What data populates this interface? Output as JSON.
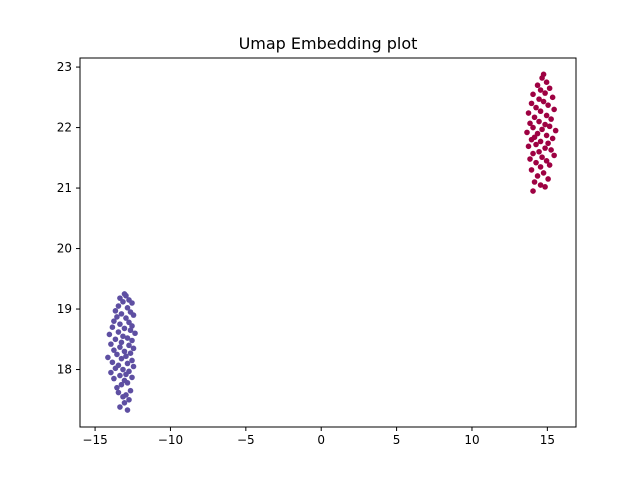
{
  "chart_data": {
    "type": "scatter",
    "title": "Umap Embedding plot",
    "xlabel": "",
    "ylabel": "",
    "xlim": [
      -16.0,
      16.9
    ],
    "ylim": [
      17.05,
      23.15
    ],
    "xticks": [
      -15,
      -10,
      -5,
      0,
      5,
      10,
      15
    ],
    "xtick_labels": [
      "−15",
      "−10",
      "−5",
      "0",
      "5",
      "10",
      "15"
    ],
    "yticks": [
      18,
      19,
      20,
      21,
      22,
      23
    ],
    "ytick_labels": [
      "18",
      "19",
      "20",
      "21",
      "22",
      "23"
    ],
    "grid": false,
    "legend": "none",
    "series": [
      {
        "color": "#5e4fa2",
        "points": [
          [
            -13.05,
            19.25
          ],
          [
            -12.95,
            19.22
          ],
          [
            -13.35,
            19.18
          ],
          [
            -12.75,
            19.15
          ],
          [
            -13.15,
            19.12
          ],
          [
            -12.55,
            19.1
          ],
          [
            -13.45,
            19.05
          ],
          [
            -12.85,
            19.02
          ],
          [
            -13.65,
            18.97
          ],
          [
            -12.65,
            18.95
          ],
          [
            -13.25,
            18.92
          ],
          [
            -12.45,
            18.9
          ],
          [
            -13.55,
            18.87
          ],
          [
            -12.95,
            18.85
          ],
          [
            -13.75,
            18.8
          ],
          [
            -12.75,
            18.78
          ],
          [
            -13.35,
            18.75
          ],
          [
            -12.55,
            18.72
          ],
          [
            -13.85,
            18.7
          ],
          [
            -13.05,
            18.68
          ],
          [
            -12.65,
            18.65
          ],
          [
            -13.45,
            18.62
          ],
          [
            -12.35,
            18.6
          ],
          [
            -14.05,
            18.58
          ],
          [
            -13.15,
            18.55
          ],
          [
            -12.85,
            18.52
          ],
          [
            -13.65,
            18.5
          ],
          [
            -12.55,
            18.48
          ],
          [
            -13.25,
            18.45
          ],
          [
            -13.95,
            18.42
          ],
          [
            -12.75,
            18.4
          ],
          [
            -13.35,
            18.37
          ],
          [
            -12.45,
            18.35
          ],
          [
            -13.75,
            18.32
          ],
          [
            -13.05,
            18.3
          ],
          [
            -12.65,
            18.27
          ],
          [
            -13.55,
            18.25
          ],
          [
            -12.95,
            18.22
          ],
          [
            -14.15,
            18.2
          ],
          [
            -13.25,
            18.18
          ],
          [
            -12.55,
            18.15
          ],
          [
            -13.85,
            18.12
          ],
          [
            -12.85,
            18.1
          ],
          [
            -13.45,
            18.07
          ],
          [
            -12.45,
            18.05
          ],
          [
            -13.65,
            18.02
          ],
          [
            -13.15,
            18.0
          ],
          [
            -12.75,
            17.97
          ],
          [
            -13.95,
            17.95
          ],
          [
            -12.95,
            17.92
          ],
          [
            -13.35,
            17.9
          ],
          [
            -12.55,
            17.87
          ],
          [
            -13.75,
            17.85
          ],
          [
            -13.05,
            17.82
          ],
          [
            -12.85,
            17.78
          ],
          [
            -13.25,
            17.75
          ],
          [
            -13.55,
            17.7
          ],
          [
            -12.65,
            17.65
          ],
          [
            -13.45,
            17.62
          ],
          [
            -12.95,
            17.58
          ],
          [
            -13.15,
            17.55
          ],
          [
            -12.75,
            17.5
          ],
          [
            -13.05,
            17.45
          ],
          [
            -13.35,
            17.38
          ],
          [
            -12.85,
            17.33
          ]
        ]
      },
      {
        "color": "#9e0142",
        "points": [
          [
            14.75,
            22.88
          ],
          [
            14.65,
            22.82
          ],
          [
            14.95,
            22.75
          ],
          [
            14.35,
            22.7
          ],
          [
            15.15,
            22.65
          ],
          [
            14.55,
            22.62
          ],
          [
            14.85,
            22.57
          ],
          [
            14.05,
            22.55
          ],
          [
            15.35,
            22.5
          ],
          [
            14.45,
            22.47
          ],
          [
            14.75,
            22.43
          ],
          [
            13.95,
            22.4
          ],
          [
            15.05,
            22.37
          ],
          [
            14.25,
            22.33
          ],
          [
            15.45,
            22.3
          ],
          [
            14.55,
            22.27
          ],
          [
            13.75,
            22.24
          ],
          [
            14.95,
            22.2
          ],
          [
            14.15,
            22.17
          ],
          [
            15.25,
            22.14
          ],
          [
            14.45,
            22.1
          ],
          [
            13.85,
            22.07
          ],
          [
            14.85,
            22.05
          ],
          [
            15.15,
            22.02
          ],
          [
            14.05,
            22.0
          ],
          [
            14.65,
            21.97
          ],
          [
            15.55,
            21.95
          ],
          [
            13.65,
            21.92
          ],
          [
            14.35,
            21.9
          ],
          [
            14.95,
            21.87
          ],
          [
            14.15,
            21.84
          ],
          [
            15.35,
            21.82
          ],
          [
            13.95,
            21.8
          ],
          [
            14.55,
            21.77
          ],
          [
            15.05,
            21.74
          ],
          [
            14.25,
            21.72
          ],
          [
            13.75,
            21.69
          ],
          [
            14.85,
            21.66
          ],
          [
            15.25,
            21.63
          ],
          [
            14.45,
            21.6
          ],
          [
            14.05,
            21.57
          ],
          [
            15.45,
            21.54
          ],
          [
            14.65,
            21.51
          ],
          [
            13.85,
            21.48
          ],
          [
            14.95,
            21.45
          ],
          [
            14.25,
            21.42
          ],
          [
            15.15,
            21.38
          ],
          [
            14.55,
            21.35
          ],
          [
            13.95,
            21.3
          ],
          [
            14.75,
            21.25
          ],
          [
            14.35,
            21.2
          ],
          [
            15.05,
            21.15
          ],
          [
            14.15,
            21.1
          ],
          [
            14.55,
            21.05
          ],
          [
            14.85,
            21.02
          ],
          [
            14.05,
            20.95
          ]
        ]
      }
    ]
  }
}
